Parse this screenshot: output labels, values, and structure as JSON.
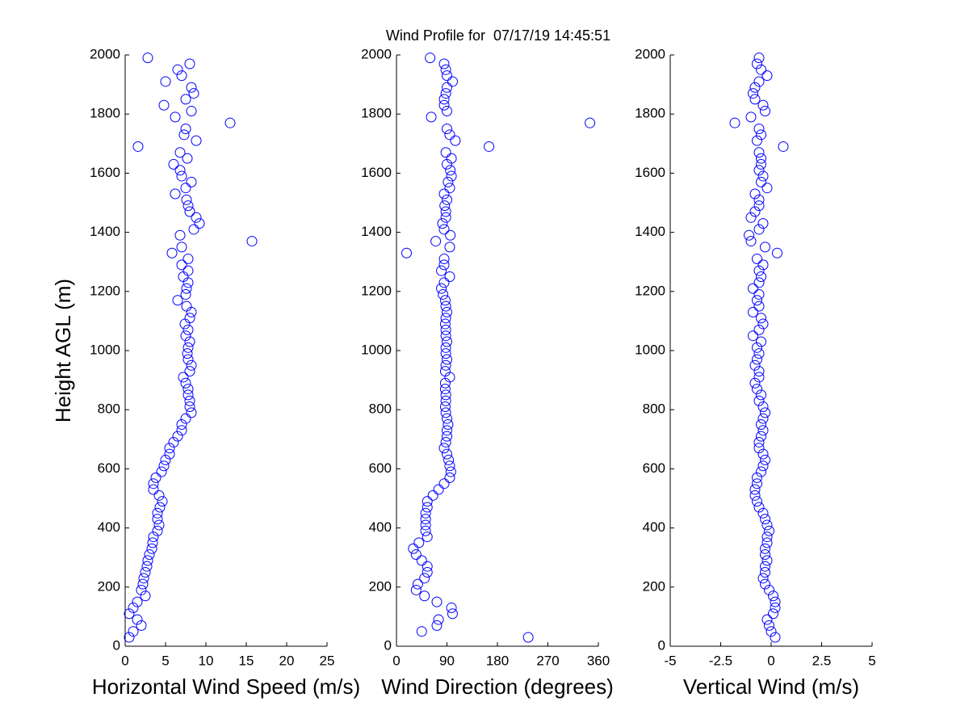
{
  "chart_data": [
    {
      "type": "scatter",
      "title": "Wind Profile for  07/17/19 14:45:51",
      "x_label": "Horizontal Wind Speed (m/s)",
      "y_label": "Height AGL (m)",
      "color": "#0000ff",
      "x": [
        0.5,
        1,
        2,
        1.5,
        0.5,
        1,
        1.5,
        2.5,
        2,
        2.2,
        2.3,
        2.5,
        2.7,
        2.8,
        3,
        3.3,
        3.4,
        3.5,
        4,
        4.2,
        4,
        4,
        4.3,
        4.6,
        4.2,
        3.5,
        3.5,
        3.8,
        4.5,
        4.8,
        5,
        5.5,
        5.5,
        6,
        6.5,
        7,
        7,
        7.5,
        8.2,
        8,
        8,
        7.8,
        7.8,
        7.5,
        7.2,
        8,
        8.2,
        7.8,
        7.7,
        7.8,
        8,
        7.5,
        7.8,
        7.4,
        8,
        8.2,
        7.6,
        6.5,
        7.5,
        7.6,
        7.8,
        7.2,
        7.8,
        7,
        7.8,
        5.8,
        7,
        15.7,
        6.8,
        8.5,
        9.2,
        8.8,
        8,
        7.8,
        7.6,
        6.2,
        7.5,
        8.2,
        7,
        6.8,
        6,
        7.7,
        6.8,
        1.6,
        8.8,
        7.3,
        7.5,
        13,
        6.2,
        8.2,
        4.8,
        7.5,
        8.5,
        8.2,
        5,
        7,
        6.5,
        8,
        2.8
      ],
      "values": [
        30,
        50,
        70,
        90,
        110,
        130,
        150,
        170,
        190,
        210,
        230,
        250,
        270,
        290,
        310,
        330,
        350,
        370,
        390,
        410,
        430,
        450,
        470,
        490,
        510,
        530,
        550,
        570,
        590,
        610,
        630,
        650,
        670,
        690,
        710,
        730,
        750,
        770,
        790,
        810,
        830,
        850,
        870,
        890,
        910,
        930,
        950,
        970,
        990,
        1010,
        1030,
        1050,
        1070,
        1090,
        1110,
        1130,
        1150,
        1170,
        1190,
        1210,
        1230,
        1250,
        1270,
        1290,
        1310,
        1330,
        1350,
        1370,
        1390,
        1410,
        1430,
        1450,
        1470,
        1490,
        1510,
        1530,
        1550,
        1570,
        1590,
        1610,
        1630,
        1650,
        1670,
        1690,
        1710,
        1730,
        1750,
        1770,
        1790,
        1810,
        1830,
        1850,
        1870,
        1890,
        1910,
        1930,
        1950,
        1970,
        1990
      ],
      "xlim": [
        0,
        25
      ],
      "xticks": [
        0,
        5,
        10,
        15,
        20,
        25
      ],
      "ylim": [
        0,
        2000
      ],
      "yticks": [
        0,
        200,
        400,
        600,
        800,
        1000,
        1200,
        1400,
        1600,
        1800,
        2000
      ]
    },
    {
      "type": "scatter",
      "x_label": "Wind Direction (degrees)",
      "color": "#0000ff",
      "x": [
        235,
        45,
        72,
        75,
        100,
        98,
        72,
        50,
        35,
        38,
        50,
        55,
        55,
        45,
        35,
        30,
        40,
        55,
        52,
        52,
        52,
        52,
        55,
        55,
        65,
        75,
        85,
        95,
        97,
        95,
        93,
        90,
        85,
        88,
        90,
        90,
        92,
        90,
        88,
        87,
        88,
        88,
        87,
        87,
        95,
        87,
        88,
        90,
        88,
        88,
        90,
        88,
        88,
        87,
        88,
        90,
        88,
        87,
        83,
        80,
        85,
        95,
        80,
        85,
        85,
        18,
        95,
        70,
        96,
        85,
        82,
        88,
        88,
        86,
        90,
        85,
        95,
        92,
        98,
        96,
        90,
        98,
        88,
        165,
        105,
        95,
        90,
        345,
        62,
        90,
        85,
        85,
        88,
        90,
        100,
        90,
        88,
        85,
        60
      ],
      "values": [
        30,
        50,
        70,
        90,
        110,
        130,
        150,
        170,
        190,
        210,
        230,
        250,
        270,
        290,
        310,
        330,
        350,
        370,
        390,
        410,
        430,
        450,
        470,
        490,
        510,
        530,
        550,
        570,
        590,
        610,
        630,
        650,
        670,
        690,
        710,
        730,
        750,
        770,
        790,
        810,
        830,
        850,
        870,
        890,
        910,
        930,
        950,
        970,
        990,
        1010,
        1030,
        1050,
        1070,
        1090,
        1110,
        1130,
        1150,
        1170,
        1190,
        1210,
        1230,
        1250,
        1270,
        1290,
        1310,
        1330,
        1350,
        1370,
        1390,
        1410,
        1430,
        1450,
        1470,
        1490,
        1510,
        1530,
        1550,
        1570,
        1590,
        1610,
        1630,
        1650,
        1670,
        1690,
        1710,
        1730,
        1750,
        1770,
        1790,
        1810,
        1830,
        1850,
        1870,
        1890,
        1910,
        1930,
        1950,
        1970,
        1990
      ],
      "xlim": [
        0,
        360
      ],
      "xticks": [
        0,
        90,
        180,
        270,
        360
      ],
      "ylim": [
        0,
        2000
      ],
      "yticks": [
        0,
        200,
        400,
        600,
        800,
        1000,
        1200,
        1400,
        1600,
        1800,
        2000
      ]
    },
    {
      "type": "scatter",
      "x_label": "Vertical Wind (m/s)",
      "color": "#0000ff",
      "x": [
        0.2,
        0,
        -0.1,
        -0.2,
        0.1,
        0.2,
        0.2,
        0.1,
        -0.1,
        -0.3,
        -0.4,
        -0.3,
        -0.3,
        -0.2,
        -0.3,
        -0.3,
        -0.2,
        -0.2,
        -0.1,
        -0.2,
        -0.3,
        -0.4,
        -0.6,
        -0.7,
        -0.8,
        -0.8,
        -0.7,
        -0.7,
        -0.5,
        -0.4,
        -0.3,
        -0.4,
        -0.6,
        -0.6,
        -0.5,
        -0.4,
        -0.5,
        -0.4,
        -0.3,
        -0.4,
        -0.6,
        -0.5,
        -0.7,
        -0.8,
        -0.6,
        -0.6,
        -0.8,
        -0.7,
        -0.6,
        -0.7,
        -0.5,
        -0.9,
        -0.6,
        -0.4,
        -0.5,
        -0.9,
        -0.6,
        -0.7,
        -0.6,
        -0.9,
        -0.6,
        -0.5,
        -0.6,
        -0.4,
        -0.7,
        0.3,
        -0.3,
        -1.0,
        -1.1,
        -0.6,
        -0.4,
        -1.0,
        -0.8,
        -0.6,
        -0.6,
        -0.8,
        -0.2,
        -0.5,
        -0.4,
        -0.6,
        -0.5,
        -0.5,
        -0.6,
        0.6,
        -0.7,
        -0.5,
        -0.6,
        -1.8,
        -1.0,
        -0.3,
        -0.4,
        -0.8,
        -0.9,
        -0.8,
        -0.6,
        -0.2,
        -0.5,
        -0.7,
        -0.6
      ],
      "values": [
        30,
        50,
        70,
        90,
        110,
        130,
        150,
        170,
        190,
        210,
        230,
        250,
        270,
        290,
        310,
        330,
        350,
        370,
        390,
        410,
        430,
        450,
        470,
        490,
        510,
        530,
        550,
        570,
        590,
        610,
        630,
        650,
        670,
        690,
        710,
        730,
        750,
        770,
        790,
        810,
        830,
        850,
        870,
        890,
        910,
        930,
        950,
        970,
        990,
        1010,
        1030,
        1050,
        1070,
        1090,
        1110,
        1130,
        1150,
        1170,
        1190,
        1210,
        1230,
        1250,
        1270,
        1290,
        1310,
        1330,
        1350,
        1370,
        1390,
        1410,
        1430,
        1450,
        1470,
        1490,
        1510,
        1530,
        1550,
        1570,
        1590,
        1610,
        1630,
        1650,
        1670,
        1690,
        1710,
        1730,
        1750,
        1770,
        1790,
        1810,
        1830,
        1850,
        1870,
        1890,
        1910,
        1930,
        1950,
        1970,
        1990
      ],
      "xlim": [
        -5,
        5
      ],
      "xticks": [
        -5,
        -2.5,
        0,
        2.5,
        5
      ],
      "ylim": [
        0,
        2000
      ],
      "yticks": [
        0,
        200,
        400,
        600,
        800,
        1000,
        1200,
        1400,
        1600,
        1800,
        2000
      ]
    }
  ]
}
